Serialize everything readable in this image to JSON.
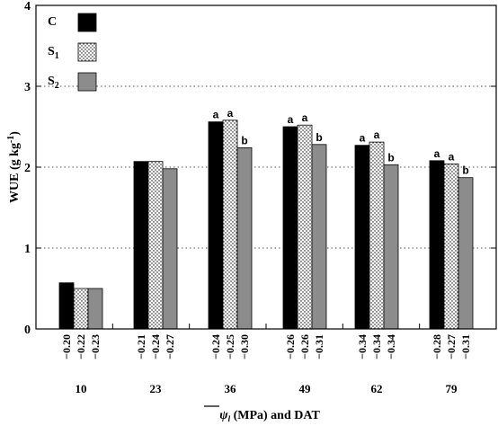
{
  "chart_data": {
    "type": "bar",
    "ylabel": {
      "main": "WUE (g kg",
      "sup": "-1",
      "close": ")"
    },
    "xlabel": {
      "symbol": "ψ",
      "sub": "l",
      "rest": " (MPa) and DAT"
    },
    "ylim": [
      0,
      4
    ],
    "yticks": [
      "0",
      "1",
      "2",
      "3",
      "4"
    ],
    "grid": "horizontal dotted at 1, 2, 3",
    "legend_position": "top-left",
    "categories": [
      "10",
      "23",
      "36",
      "49",
      "62",
      "79"
    ],
    "series": [
      {
        "name": "C",
        "label_main": "C",
        "label_sub": "",
        "fill": "black",
        "color": "#000000",
        "values": [
          0.57,
          2.07,
          2.56,
          2.5,
          2.27,
          2.08
        ],
        "psi": [
          "−0.20",
          "−0.21",
          "−0.24",
          "−0.26",
          "−0.34",
          "−0.28"
        ],
        "letters": [
          "",
          "",
          "a",
          "a",
          "a",
          "a"
        ]
      },
      {
        "name": "S1",
        "label_main": "S",
        "label_sub": "1",
        "fill": "dotted",
        "color": "#ffffff",
        "values": [
          0.5,
          2.07,
          2.58,
          2.52,
          2.31,
          2.04
        ],
        "psi": [
          "−0.22",
          "−0.24",
          "−0.25",
          "−0.26",
          "−0.34",
          "−0.27"
        ],
        "letters": [
          "",
          "",
          "a",
          "a",
          "a",
          "a"
        ]
      },
      {
        "name": "S2",
        "label_main": "S",
        "label_sub": "2",
        "fill": "gray",
        "color": "#8c8c8c",
        "values": [
          0.5,
          1.98,
          2.24,
          2.28,
          2.03,
          1.87
        ],
        "psi": [
          "−0.23",
          "−0.27",
          "−0.30",
          "−0.31",
          "−0.34",
          "−0.31"
        ],
        "letters": [
          "",
          "",
          "b",
          "b",
          "b",
          "b"
        ]
      }
    ]
  }
}
